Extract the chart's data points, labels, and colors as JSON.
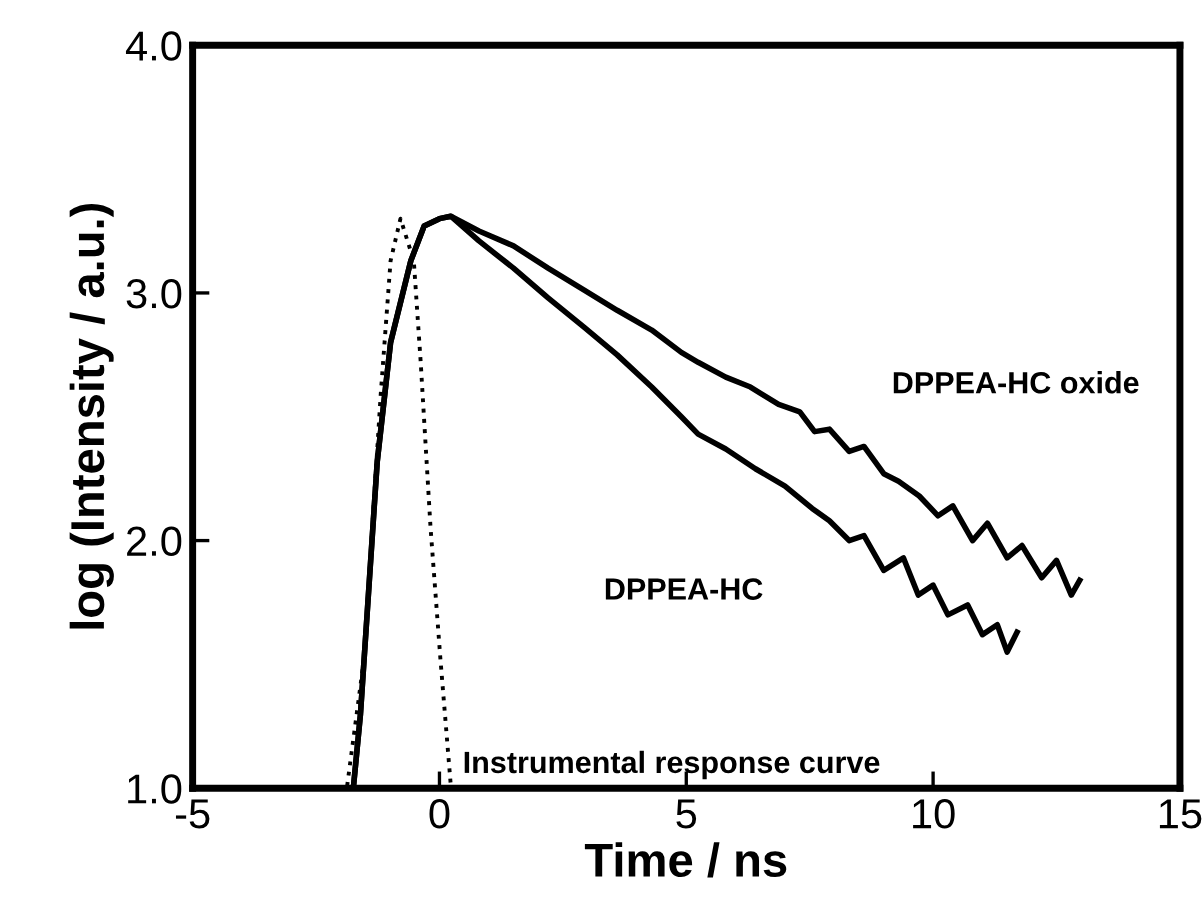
{
  "chart_data": {
    "type": "line",
    "xlabel": "Time / ns",
    "ylabel": "log (Intensity / a.u.)",
    "xlim": [
      -5,
      15
    ],
    "ylim": [
      1.0,
      4.0
    ],
    "xticks": [
      -5,
      0,
      5,
      10,
      15
    ],
    "yticks": [
      {
        "value": 1.0,
        "label": "1.0"
      },
      {
        "value": 2.0,
        "label": "2.0"
      },
      {
        "value": 3.0,
        "label": "3.0"
      },
      {
        "value": 4.0,
        "label": "4.0"
      }
    ],
    "grid": false,
    "legend": false,
    "marker": "none",
    "series": [
      {
        "name": "DPPEA-HC oxide",
        "color": "#000000",
        "line_style": "solid",
        "x": [
          -1.74,
          -1.6,
          -1.26,
          -0.99,
          -0.58,
          -0.31,
          0.0,
          0.23,
          0.8,
          1.5,
          2.2,
          2.94,
          3.6,
          4.3,
          4.9,
          5.24,
          5.8,
          6.3,
          6.87,
          7.3,
          7.6,
          7.9,
          8.3,
          8.6,
          9.0,
          9.3,
          9.72,
          10.1,
          10.4,
          10.8,
          11.1,
          11.5,
          11.8,
          12.2,
          12.5,
          12.8,
          12.97
        ],
        "values": [
          1.01,
          1.3,
          2.32,
          2.8,
          3.13,
          3.27,
          3.3,
          3.31,
          3.25,
          3.19,
          3.1,
          3.01,
          2.93,
          2.85,
          2.76,
          2.72,
          2.66,
          2.62,
          2.55,
          2.52,
          2.44,
          2.45,
          2.36,
          2.38,
          2.27,
          2.24,
          2.18,
          2.1,
          2.14,
          2.0,
          2.07,
          1.93,
          1.98,
          1.85,
          1.92,
          1.78,
          1.84
        ]
      },
      {
        "name": "DPPEA-HC",
        "color": "#000000",
        "line_style": "solid",
        "x": [
          -1.74,
          -1.6,
          -1.26,
          -0.99,
          -0.58,
          -0.31,
          0.0,
          0.23,
          0.8,
          1.5,
          2.2,
          2.94,
          3.6,
          4.3,
          4.9,
          5.24,
          5.8,
          6.4,
          7.0,
          7.55,
          7.9,
          8.3,
          8.6,
          9.0,
          9.4,
          9.7,
          10.0,
          10.3,
          10.7,
          11.0,
          11.3,
          11.5,
          11.7
        ],
        "values": [
          1.01,
          1.3,
          2.32,
          2.8,
          3.13,
          3.27,
          3.3,
          3.31,
          3.21,
          3.1,
          2.98,
          2.86,
          2.75,
          2.62,
          2.5,
          2.43,
          2.37,
          2.29,
          2.22,
          2.13,
          2.08,
          2.0,
          2.02,
          1.88,
          1.93,
          1.78,
          1.82,
          1.7,
          1.74,
          1.62,
          1.66,
          1.55,
          1.63
        ]
      },
      {
        "name": "Instrumental response curve",
        "color": "#000000",
        "line_style": "dotted",
        "x": [
          -1.87,
          -1.53,
          -1.19,
          -0.99,
          -0.79,
          -0.52,
          -0.38,
          -0.18,
          0.02,
          0.23
        ],
        "values": [
          1.01,
          1.52,
          2.59,
          3.13,
          3.3,
          3.13,
          2.72,
          2.05,
          1.52,
          1.01
        ]
      }
    ]
  }
}
